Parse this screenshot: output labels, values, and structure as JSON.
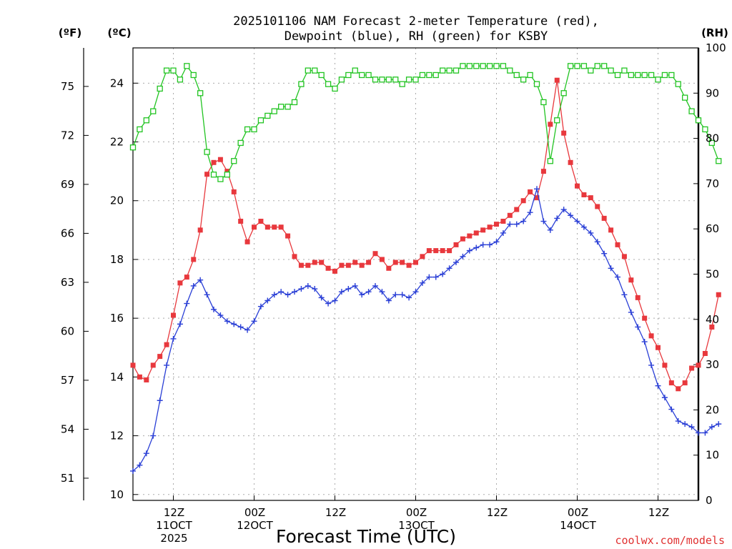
{
  "chart_data": {
    "type": "line",
    "title_line1": "2025101106 NAM Forecast 2-meter Temperature (red),",
    "title_line2": "Dewpoint (blue), RH (green) for KSBY",
    "xlabel": "Forecast Time (UTC)",
    "credit": "coolwx.com/models",
    "units": {
      "fahrenheit": "(ºF)",
      "celsius": "(ºC)",
      "rh": "(RH)"
    },
    "x_hours_range": [
      0,
      84
    ],
    "x_ticks": [
      {
        "hour": 6,
        "lines": [
          "12Z",
          "11OCT",
          "2025"
        ]
      },
      {
        "hour": 18,
        "lines": [
          "00Z",
          "12OCT"
        ]
      },
      {
        "hour": 30,
        "lines": [
          "12Z"
        ]
      },
      {
        "hour": 42,
        "lines": [
          "00Z",
          "13OCT"
        ]
      },
      {
        "hour": 54,
        "lines": [
          "12Z"
        ]
      },
      {
        "hour": 66,
        "lines": [
          "00Z",
          "14OCT"
        ]
      },
      {
        "hour": 78,
        "lines": [
          "12Z"
        ]
      }
    ],
    "y_celsius_range": [
      9.8,
      25.2
    ],
    "y_celsius_ticks": [
      "10",
      "12",
      "14",
      "16",
      "18",
      "20",
      "22",
      "24"
    ],
    "y_fahrenheit_ticks": [
      "51",
      "54",
      "57",
      "60",
      "63",
      "66",
      "69",
      "72",
      "75"
    ],
    "y_rh_range": [
      0,
      100
    ],
    "y_rh_ticks": [
      "0",
      "10",
      "20",
      "30",
      "40",
      "50",
      "60",
      "70",
      "80",
      "90",
      "100"
    ],
    "grid": true,
    "series": [
      {
        "key": "temperature",
        "color": "#e8383d",
        "marker": "filled-square",
        "values": [
          14.4,
          14.0,
          13.9,
          14.4,
          14.7,
          15.1,
          16.1,
          17.2,
          17.4,
          18.0,
          19.0,
          20.9,
          21.3,
          21.4,
          21.0,
          20.3,
          19.3,
          18.6,
          19.1,
          19.3,
          19.1,
          19.1,
          19.1,
          18.8,
          18.1,
          17.8,
          17.8,
          17.9,
          17.9,
          17.7,
          17.6,
          17.8,
          17.8,
          17.9,
          17.8,
          17.9,
          18.2,
          18.0,
          17.7,
          17.9,
          17.9,
          17.8,
          17.9,
          18.1,
          18.3,
          18.3,
          18.3,
          18.3,
          18.5,
          18.7,
          18.8,
          18.9,
          19.0,
          19.1,
          19.2,
          19.3,
          19.5,
          19.7,
          20.0,
          20.3,
          20.1,
          21.0,
          22.6,
          24.1,
          22.3,
          21.3,
          20.5,
          20.2,
          20.1,
          19.8,
          19.4,
          19.0,
          18.5,
          18.1,
          17.3,
          16.7,
          16.0,
          15.4,
          15.0,
          14.4,
          13.8,
          13.6,
          13.8,
          14.3,
          14.4,
          14.8,
          15.7,
          16.8
        ]
      },
      {
        "key": "dewpoint",
        "color": "#2a3fd6",
        "marker": "plus",
        "values": [
          10.8,
          11.0,
          11.4,
          12.0,
          13.2,
          14.4,
          15.3,
          15.8,
          16.5,
          17.1,
          17.3,
          16.8,
          16.3,
          16.1,
          15.9,
          15.8,
          15.7,
          15.6,
          15.9,
          16.4,
          16.6,
          16.8,
          16.9,
          16.8,
          16.9,
          17.0,
          17.1,
          17.0,
          16.7,
          16.5,
          16.6,
          16.9,
          17.0,
          17.1,
          16.8,
          16.9,
          17.1,
          16.9,
          16.6,
          16.8,
          16.8,
          16.7,
          16.9,
          17.2,
          17.4,
          17.4,
          17.5,
          17.7,
          17.9,
          18.1,
          18.3,
          18.4,
          18.5,
          18.5,
          18.6,
          18.9,
          19.2,
          19.2,
          19.3,
          19.6,
          20.4,
          19.3,
          19.0,
          19.4,
          19.7,
          19.5,
          19.3,
          19.1,
          18.9,
          18.6,
          18.2,
          17.7,
          17.4,
          16.8,
          16.2,
          15.7,
          15.2,
          14.4,
          13.7,
          13.3,
          12.9,
          12.5,
          12.4,
          12.3,
          12.1,
          12.1,
          12.3,
          12.4
        ]
      },
      {
        "key": "rh",
        "color": "#22c422",
        "marker": "open-square",
        "values": [
          78,
          82,
          84,
          86,
          91,
          95,
          95,
          93,
          96,
          94,
          90,
          77,
          72,
          71,
          72,
          75,
          79,
          82,
          82,
          84,
          85,
          86,
          87,
          87,
          88,
          92,
          95,
          95,
          94,
          92,
          91,
          93,
          94,
          95,
          94,
          94,
          93,
          93,
          93,
          93,
          92,
          93,
          93,
          94,
          94,
          94,
          95,
          95,
          95,
          96,
          96,
          96,
          96,
          96,
          96,
          96,
          95,
          94,
          93,
          94,
          92,
          88,
          75,
          84,
          90,
          96,
          96,
          96,
          95,
          96,
          96,
          95,
          94,
          95,
          94,
          94,
          94,
          94,
          93,
          94,
          94,
          92,
          89,
          86,
          84,
          82,
          79,
          75
        ]
      }
    ]
  }
}
